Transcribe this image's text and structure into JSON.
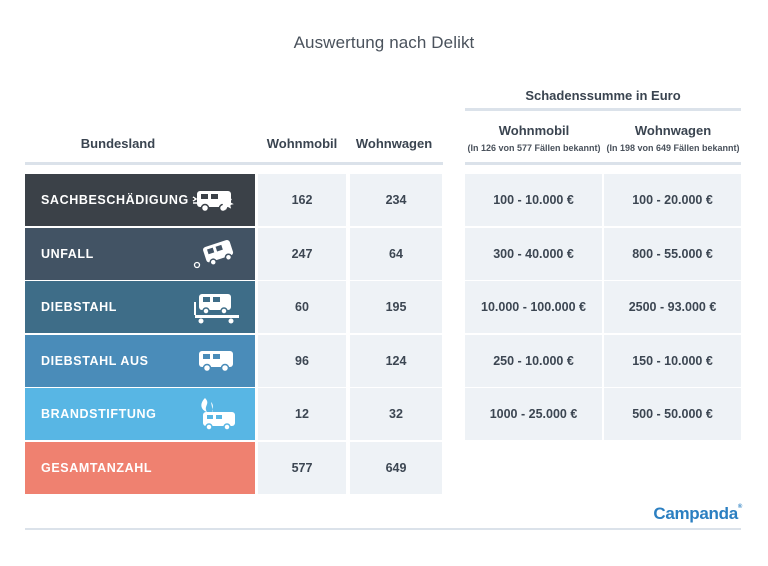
{
  "title": "Auswertung nach Delikt",
  "headers": {
    "bundesland": "Bundesland",
    "wohnmobil": "Wohnmobil",
    "wohnwagen": "Wohnwagen",
    "schadenssumme": "Schadenssumme in Euro",
    "schaden_wohnmobil": "Wohnmobil",
    "schaden_wohnmobil_note": "(In 126 von 577 Fällen bekannt)",
    "schaden_wohnwagen": "Wohnwagen",
    "schaden_wohnwagen_note": "(In 198 von 649 Fällen bekannt)"
  },
  "colors": {
    "row0": "#3b4148",
    "row1": "#425364",
    "row2": "#3e6d88",
    "row3": "#4a8cb9",
    "row4": "#58b6e4",
    "row5": "#ef8170"
  },
  "chart_data": {
    "type": "table",
    "title": "Auswertung nach Delikt",
    "columns": [
      "Bundesland",
      "Wohnmobil",
      "Wohnwagen",
      "Schadenssumme Wohnmobil",
      "Schadenssumme Wohnwagen"
    ],
    "rows": [
      {
        "label": "SACHBESCHÄDIGUNG",
        "icon": "vandalized-camper-icon",
        "wohnmobil": "162",
        "wohnwagen": "234",
        "schaden_wohnmobil": "100 - 10.000 €",
        "schaden_wohnwagen": "100 - 20.000 €"
      },
      {
        "label": "UNFALL",
        "icon": "overturned-camper-icon",
        "wohnmobil": "247",
        "wohnwagen": "64",
        "schaden_wohnmobil": "300 - 40.000 €",
        "schaden_wohnwagen": "800 - 55.000 €"
      },
      {
        "label": "DIEBSTAHL",
        "icon": "towed-camper-icon",
        "wohnmobil": "60",
        "wohnwagen": "195",
        "schaden_wohnmobil": "10.000 - 100.000 €",
        "schaden_wohnwagen": "2500 - 93.000 €"
      },
      {
        "label": "DIEBSTAHL AUS",
        "icon": "camper-icon",
        "wohnmobil": "96",
        "wohnwagen": "124",
        "schaden_wohnmobil": "250 - 10.000 €",
        "schaden_wohnwagen": "150 - 10.000 €"
      },
      {
        "label": "BRANDSTIFTUNG",
        "icon": "burning-camper-icon",
        "wohnmobil": "12",
        "wohnwagen": "32",
        "schaden_wohnmobil": "1000 - 25.000 €",
        "schaden_wohnwagen": "500 - 50.000 €"
      },
      {
        "label": "GESAMTANZAHL",
        "icon": "",
        "wohnmobil": "577",
        "wohnwagen": "649",
        "schaden_wohnmobil": "",
        "schaden_wohnwagen": ""
      }
    ]
  },
  "logo": {
    "text": "Campanda",
    "mark": "®"
  }
}
